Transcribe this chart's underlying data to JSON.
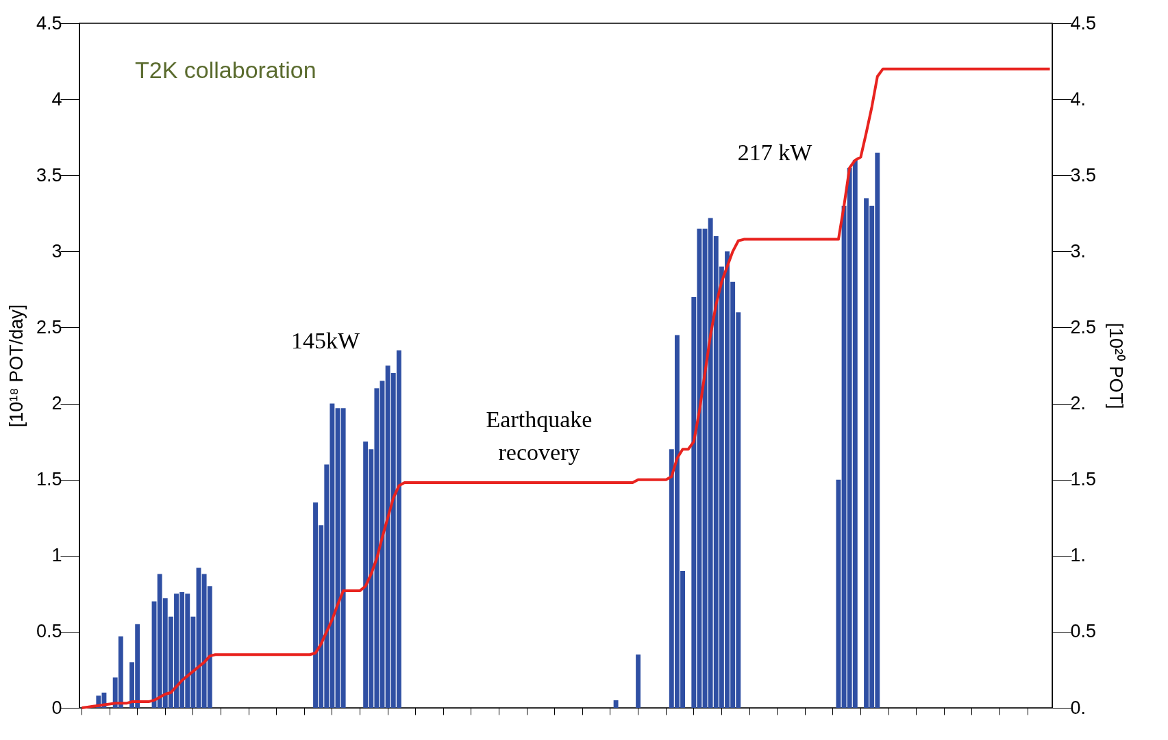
{
  "chart_data": {
    "type": "bar",
    "categories": [
      null,
      null,
      null,
      null,
      null,
      null,
      null,
      null,
      null,
      null,
      null,
      null,
      null,
      null,
      null,
      null,
      null,
      null,
      null,
      null,
      null,
      null,
      null,
      null,
      null,
      null,
      null,
      null,
      null,
      null,
      null,
      null,
      null,
      null,
      null,
      null,
      null,
      null,
      null,
      null,
      null,
      null,
      null,
      null,
      null,
      null,
      null,
      null,
      null,
      null,
      null,
      null,
      null,
      null,
      null,
      null,
      null,
      null,
      null,
      null,
      null,
      null,
      null,
      null,
      null,
      null,
      null,
      null,
      null,
      null,
      null,
      null,
      null,
      null,
      null,
      null,
      null,
      null,
      null,
      null,
      null,
      null,
      null,
      null,
      null,
      null,
      null,
      null,
      null,
      null,
      null,
      null,
      null,
      null,
      null,
      null,
      null,
      null,
      null,
      null,
      null,
      null,
      null,
      null,
      null,
      null,
      null,
      null,
      null,
      null,
      null,
      null,
      null,
      null,
      null,
      null,
      null,
      null,
      null,
      null,
      null,
      null,
      null,
      null,
      null,
      null,
      null,
      null,
      null,
      null,
      null,
      null,
      null,
      null,
      null,
      null,
      null,
      null,
      null,
      null,
      null,
      null,
      null,
      null,
      null,
      null,
      null,
      null,
      null,
      null,
      null,
      null,
      null,
      null,
      null,
      null,
      null,
      null,
      null,
      null,
      null,
      null,
      null,
      null,
      null,
      null,
      null,
      null,
      null,
      null,
      null,
      null,
      null,
      null,
      null
    ],
    "series": [
      {
        "color": "#2f4fa3",
        "values": [
          0,
          0,
          0,
          0.08,
          0.1,
          0,
          0.2,
          0.47,
          0,
          0.3,
          0.55,
          0,
          0,
          0.7,
          0.88,
          0.72,
          0.6,
          0.75,
          0.76,
          0.75,
          0.6,
          0.92,
          0.88,
          0.8,
          0,
          0,
          0,
          0,
          0,
          0,
          0,
          0,
          0,
          0,
          0,
          0,
          0,
          0,
          0,
          0,
          0,
          0,
          1.35,
          1.2,
          1.6,
          2.0,
          1.97,
          1.97,
          0,
          0,
          0,
          1.75,
          1.7,
          2.1,
          2.15,
          2.25,
          2.2,
          2.35,
          0,
          0,
          0,
          0,
          0,
          0,
          0,
          0,
          0,
          0,
          0,
          0,
          0,
          0,
          0,
          0,
          0,
          0,
          0,
          0,
          0,
          0,
          0,
          0,
          0,
          0,
          0,
          0,
          0,
          0,
          0,
          0,
          0,
          0,
          0,
          0,
          0,
          0,
          0.05,
          0,
          0,
          0,
          0.35,
          0,
          0,
          0,
          0,
          0,
          1.7,
          2.45,
          0.9,
          0,
          2.7,
          3.15,
          3.15,
          3.22,
          3.1,
          2.9,
          3.0,
          2.8,
          2.6,
          0,
          0,
          0,
          0,
          0,
          0,
          0,
          0,
          0,
          0,
          0,
          0,
          0,
          0,
          0,
          0,
          0,
          1.5,
          3.3,
          3.55,
          3.6,
          0,
          3.35,
          3.3,
          3.65,
          0,
          0,
          0,
          0,
          0,
          0,
          0,
          0,
          0,
          0,
          0,
          0,
          0,
          0,
          0,
          0,
          0,
          0,
          0,
          0,
          0,
          0,
          0,
          0,
          0,
          0,
          0,
          0,
          0,
          0,
          0
        ]
      },
      {
        "type": "line",
        "axis": "y2",
        "color": "#e8231f",
        "values": [
          0,
          0.005,
          0.01,
          0.015,
          0.02,
          0.025,
          0.03,
          0.03,
          0.03,
          0.04,
          0.04,
          0.04,
          0.04,
          0.05,
          0.07,
          0.09,
          0.1,
          0.14,
          0.18,
          0.21,
          0.24,
          0.27,
          0.3,
          0.34,
          0.35,
          0.35,
          0.35,
          0.35,
          0.35,
          0.35,
          0.35,
          0.35,
          0.35,
          0.35,
          0.35,
          0.35,
          0.35,
          0.35,
          0.35,
          0.35,
          0.35,
          0.35,
          0.36,
          0.42,
          0.5,
          0.58,
          0.68,
          0.77,
          0.77,
          0.77,
          0.77,
          0.8,
          0.88,
          0.98,
          1.12,
          1.25,
          1.38,
          1.46,
          1.48,
          1.48,
          1.48,
          1.48,
          1.48,
          1.48,
          1.48,
          1.48,
          1.48,
          1.48,
          1.48,
          1.48,
          1.48,
          1.48,
          1.48,
          1.48,
          1.48,
          1.48,
          1.48,
          1.48,
          1.48,
          1.48,
          1.48,
          1.48,
          1.48,
          1.48,
          1.48,
          1.48,
          1.48,
          1.48,
          1.48,
          1.48,
          1.48,
          1.48,
          1.48,
          1.48,
          1.48,
          1.48,
          1.48,
          1.48,
          1.48,
          1.48,
          1.5,
          1.5,
          1.5,
          1.5,
          1.5,
          1.5,
          1.52,
          1.64,
          1.7,
          1.7,
          1.75,
          1.95,
          2.2,
          2.45,
          2.65,
          2.8,
          2.9,
          3.0,
          3.07,
          3.08,
          3.08,
          3.08,
          3.08,
          3.08,
          3.08,
          3.08,
          3.08,
          3.08,
          3.08,
          3.08,
          3.08,
          3.08,
          3.08,
          3.08,
          3.08,
          3.08,
          3.08,
          3.3,
          3.55,
          3.6,
          3.62,
          3.78,
          3.95,
          4.15,
          4.2,
          4.2,
          4.2,
          4.2,
          4.2,
          4.2,
          4.2,
          4.2,
          4.2,
          4.2,
          4.2,
          4.2,
          4.2,
          4.2,
          4.2,
          4.2,
          4.2,
          4.2,
          4.2,
          4.2,
          4.2,
          4.2,
          4.2,
          4.2,
          4.2,
          4.2,
          4.2,
          4.2,
          4.2,
          4.2,
          4.2
        ]
      }
    ],
    "ylabel": "[10¹⁸ POT/day]",
    "y2label": "[10²⁰ POT]",
    "ylim": [
      0,
      4.5
    ],
    "yticks": [
      0,
      0.5,
      1,
      1.5,
      2,
      2.5,
      3,
      3.5,
      4,
      4.5
    ],
    "y2lim": [
      0,
      4.5
    ],
    "y2ticks": [
      {
        "value": 0,
        "label": "0."
      },
      0.5,
      {
        "value": 1,
        "label": "1."
      },
      1.5,
      {
        "value": 2,
        "label": "2."
      },
      2.5,
      {
        "value": 3,
        "label": "3."
      },
      3.5,
      {
        "value": 4,
        "label": "4."
      },
      4.5
    ],
    "tick_labels": "y",
    "grid": false,
    "annotations": [
      "T2K collaboration",
      "145kW",
      "Earthquake recovery",
      "217 kW"
    ]
  }
}
